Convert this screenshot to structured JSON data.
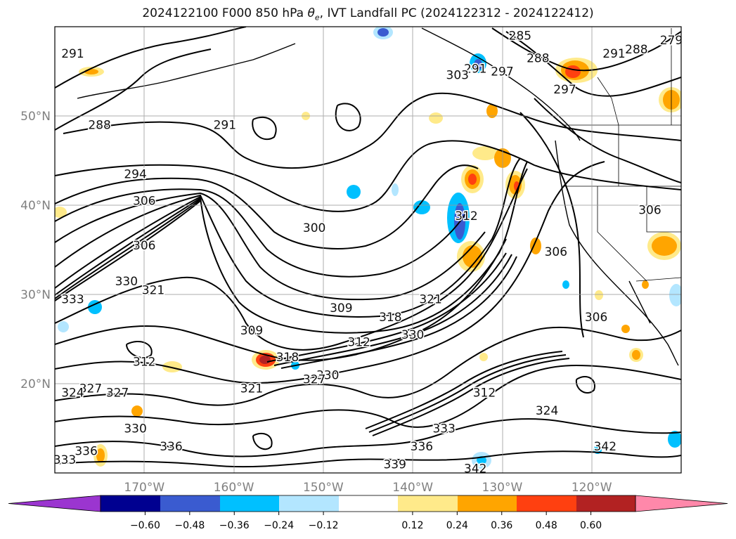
{
  "title": {
    "prefix": "2024122100 F000 850 hPa ",
    "theta": "θ",
    "theta_sub": "e",
    "suffix": ", IVT Landfall PC (2024122312 - 2024122412)"
  },
  "map": {
    "lat_labels": [
      "50°N",
      "40°N",
      "30°N",
      "20°N"
    ],
    "lat_values": [
      50,
      40,
      30,
      20
    ],
    "lon_labels": [
      "170°W",
      "160°W",
      "150°W",
      "140°W",
      "130°W",
      "120°W"
    ],
    "lon_values": [
      -170,
      -160,
      -150,
      -140,
      -130,
      -120
    ],
    "extent": {
      "lon_min": -180,
      "lon_max": -110,
      "lat_min": 10,
      "lat_max": 60
    },
    "contour_labels": [
      {
        "text": "291",
        "lon": -178,
        "lat": 57
      },
      {
        "text": "285",
        "lon": -128,
        "lat": 59
      },
      {
        "text": "288",
        "lon": -126,
        "lat": 56.5
      },
      {
        "text": "291",
        "lon": -133,
        "lat": 55.3
      },
      {
        "text": "297",
        "lon": -130,
        "lat": 55
      },
      {
        "text": "303",
        "lon": -135,
        "lat": 54.6
      },
      {
        "text": "297",
        "lon": -123,
        "lat": 53
      },
      {
        "text": "291",
        "lon": -117.5,
        "lat": 57
      },
      {
        "text": "288",
        "lon": -115,
        "lat": 57.5
      },
      {
        "text": "279",
        "lon": -111,
        "lat": 58.5
      },
      {
        "text": "288",
        "lon": -175,
        "lat": 49
      },
      {
        "text": "291",
        "lon": -161,
        "lat": 49
      },
      {
        "text": "294",
        "lon": -171,
        "lat": 43.5
      },
      {
        "text": "306",
        "lon": -170,
        "lat": 40.5
      },
      {
        "text": "306",
        "lon": -170,
        "lat": 35.5
      },
      {
        "text": "300",
        "lon": -151,
        "lat": 37.5
      },
      {
        "text": "312",
        "lon": -134,
        "lat": 38.8
      },
      {
        "text": "306",
        "lon": -124,
        "lat": 34.8
      },
      {
        "text": "306",
        "lon": -113.5,
        "lat": 39.5
      },
      {
        "text": "306",
        "lon": -119.5,
        "lat": 27.5
      },
      {
        "text": "321",
        "lon": -169,
        "lat": 30.5
      },
      {
        "text": "330",
        "lon": -172,
        "lat": 31.5
      },
      {
        "text": "333",
        "lon": -178,
        "lat": 29.5
      },
      {
        "text": "309",
        "lon": -148,
        "lat": 28.5
      },
      {
        "text": "309",
        "lon": -158,
        "lat": 26
      },
      {
        "text": "318",
        "lon": -142.5,
        "lat": 27.5
      },
      {
        "text": "321",
        "lon": -138,
        "lat": 29.5
      },
      {
        "text": "312",
        "lon": -170,
        "lat": 22.5
      },
      {
        "text": "318",
        "lon": -154,
        "lat": 23
      },
      {
        "text": "312",
        "lon": -146,
        "lat": 24.7
      },
      {
        "text": "330",
        "lon": -149.5,
        "lat": 21
      },
      {
        "text": "327",
        "lon": -151,
        "lat": 20.5
      },
      {
        "text": "321",
        "lon": -158,
        "lat": 19.5
      },
      {
        "text": "327",
        "lon": -176,
        "lat": 19.5
      },
      {
        "text": "324",
        "lon": -178,
        "lat": 19
      },
      {
        "text": "327",
        "lon": -173,
        "lat": 19
      },
      {
        "text": "330",
        "lon": -140,
        "lat": 25.5
      },
      {
        "text": "312",
        "lon": -132,
        "lat": 19
      },
      {
        "text": "324",
        "lon": -125,
        "lat": 17
      },
      {
        "text": "330",
        "lon": -171,
        "lat": 15
      },
      {
        "text": "333",
        "lon": -136.5,
        "lat": 15
      },
      {
        "text": "336",
        "lon": -167,
        "lat": 13
      },
      {
        "text": "336",
        "lon": -176.5,
        "lat": 12.5
      },
      {
        "text": "336",
        "lon": -139,
        "lat": 13
      },
      {
        "text": "333",
        "lon": -179,
        "lat": 11.5
      },
      {
        "text": "339",
        "lon": -142,
        "lat": 11
      },
      {
        "text": "342",
        "lon": -118.5,
        "lat": 13
      },
      {
        "text": "342",
        "lon": -133,
        "lat": 10.5
      }
    ]
  },
  "colorbar": {
    "ticks": [
      "−0.60",
      "−0.48",
      "−0.36",
      "−0.24",
      "−0.12",
      "0.12",
      "0.24",
      "0.36",
      "0.48",
      "0.60"
    ],
    "tick_values": [
      -0.6,
      -0.48,
      -0.36,
      -0.24,
      -0.12,
      0.12,
      0.24,
      0.36,
      0.48,
      0.6
    ],
    "colors": [
      "#9b35d0",
      "#000090",
      "#3a5bd0",
      "#00c0ff",
      "#b3e6ff",
      "#ffffff",
      "#ffea8a",
      "#ffa500",
      "#ff4010",
      "#b22222",
      "#ff88aa"
    ]
  }
}
